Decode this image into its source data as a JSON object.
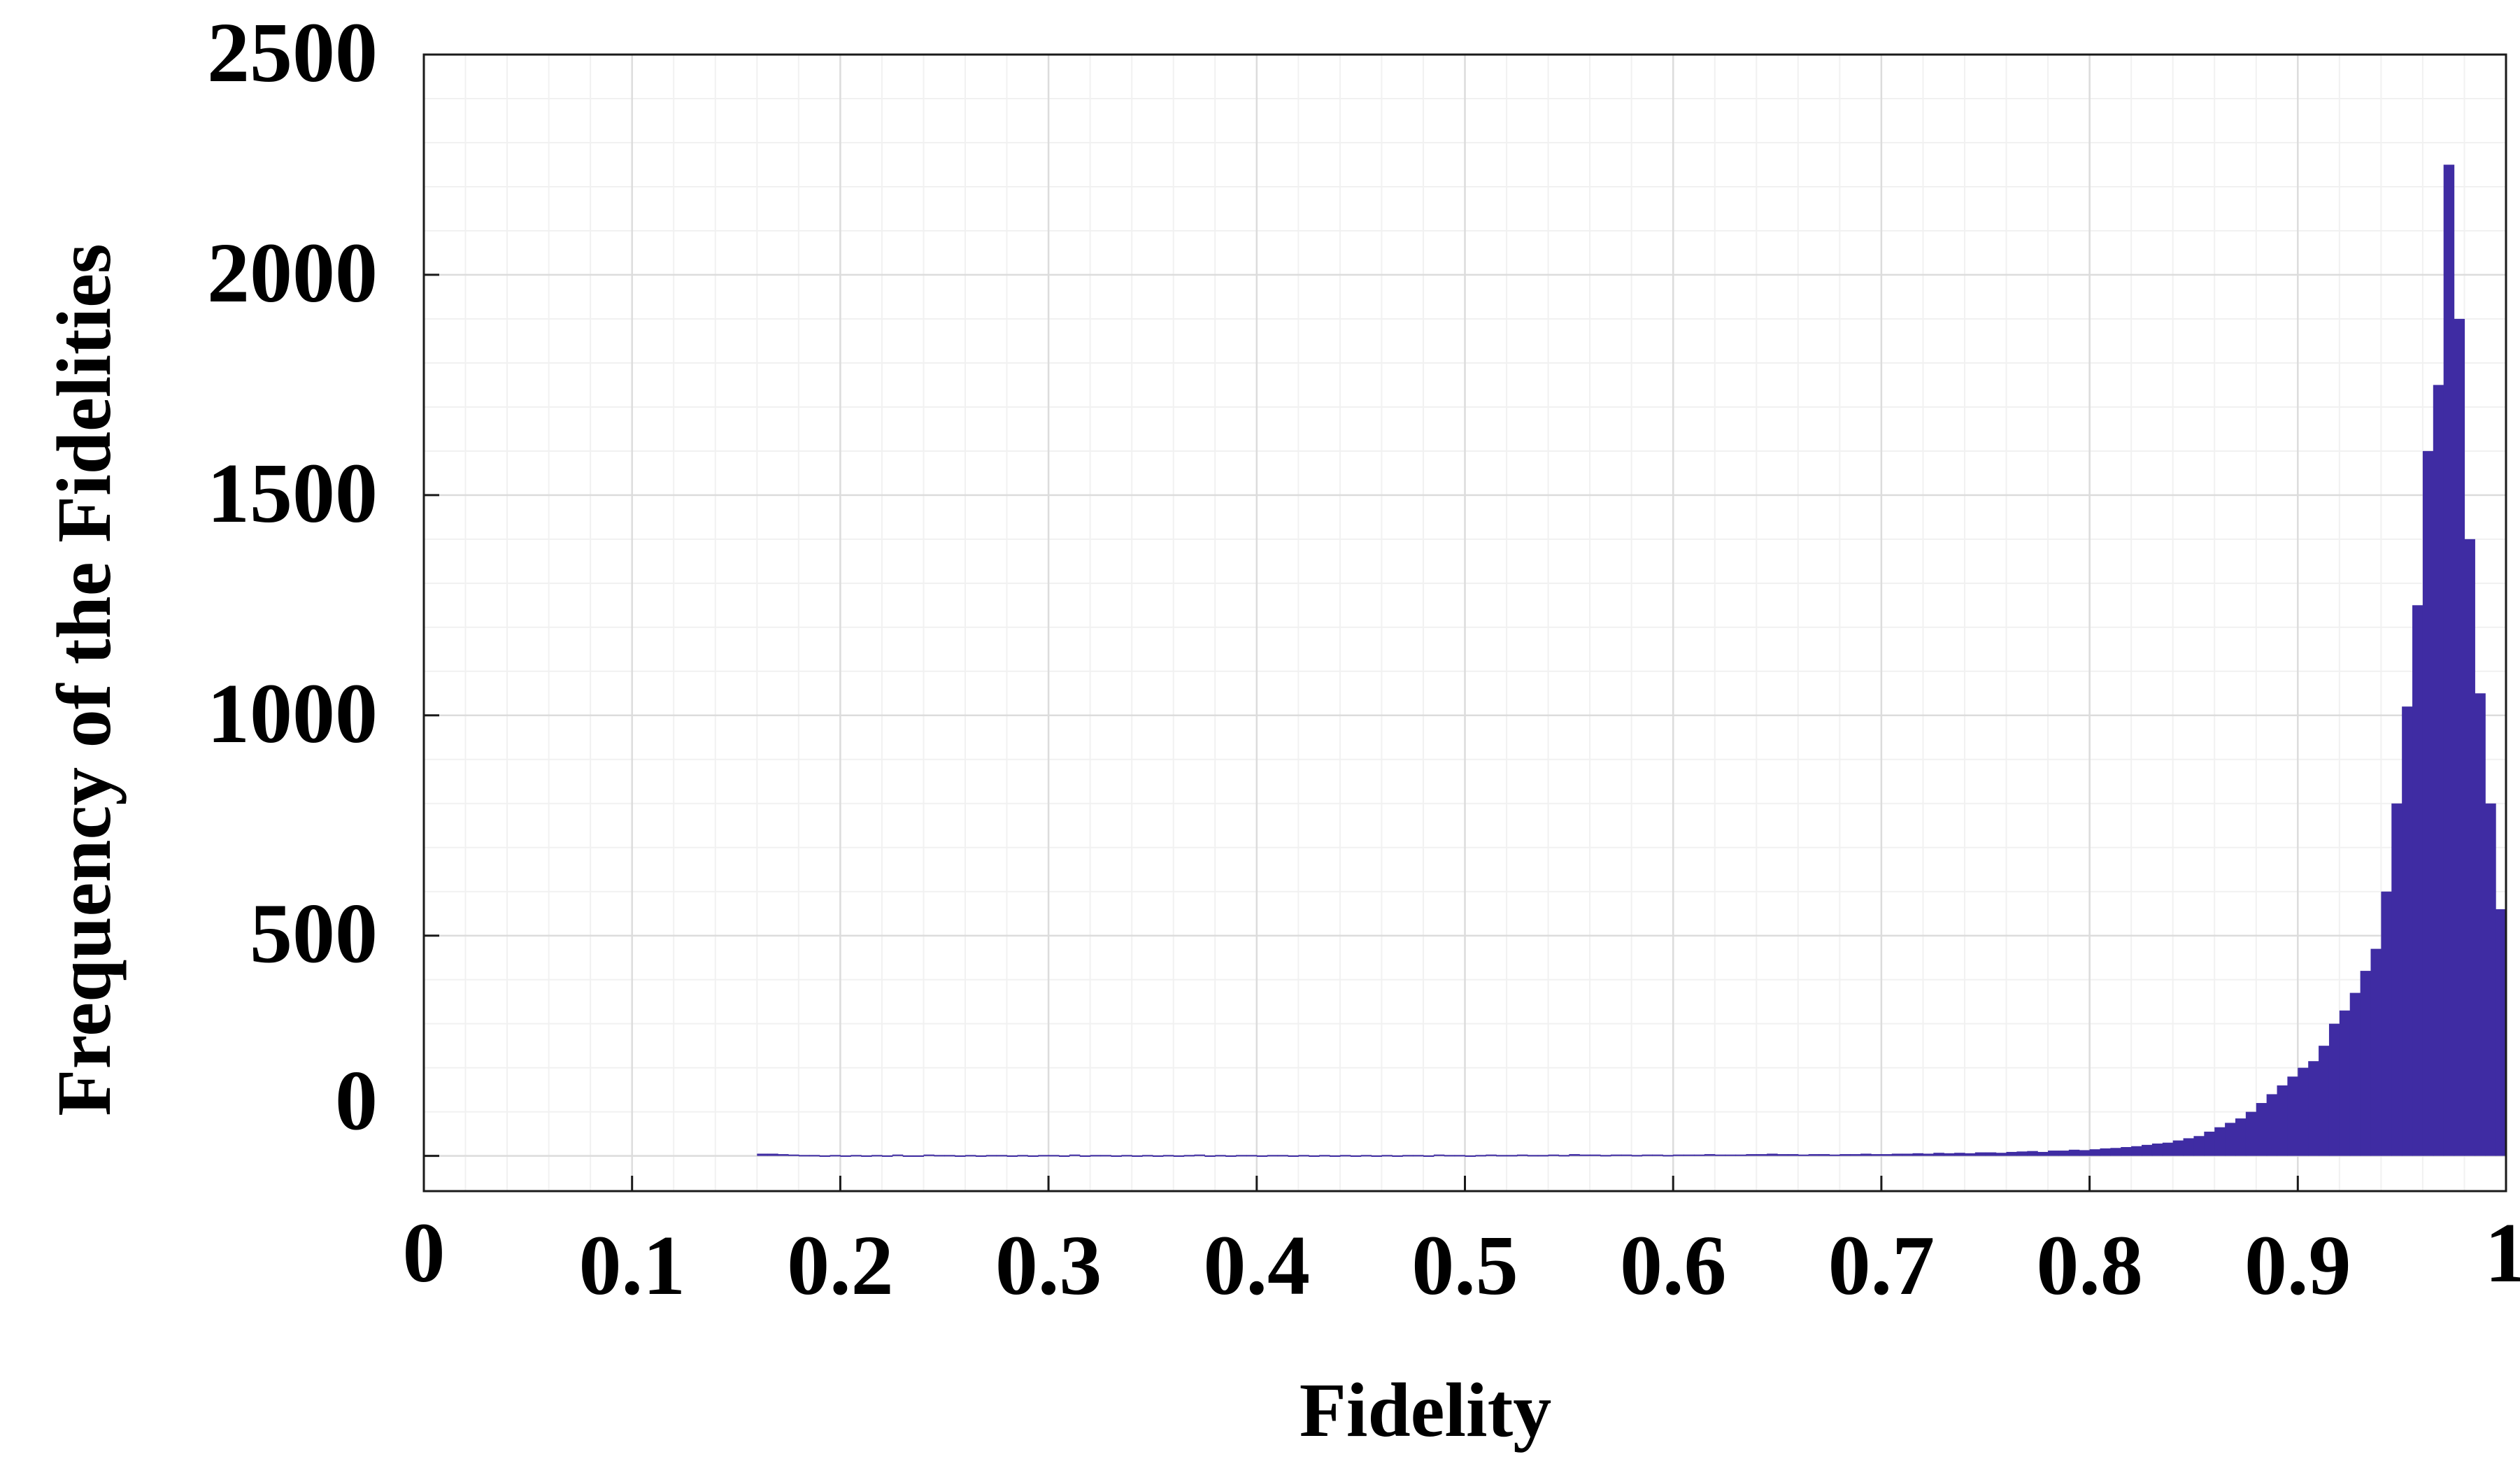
{
  "chart_data": {
    "type": "bar",
    "xlabel": "Fidelity",
    "ylabel": "Frequency of the Fidelities",
    "xlim": [
      0,
      1
    ],
    "ylim": [
      -80,
      2500
    ],
    "xticks": [
      0,
      0.1,
      0.2,
      0.3,
      0.4,
      0.5,
      0.6,
      0.7,
      0.8,
      0.9,
      1
    ],
    "xtick_labels": [
      "0",
      "0.1",
      "0.2",
      "0.3",
      "0.4",
      "0.5",
      "0.6",
      "0.7",
      "0.8",
      "0.9",
      "1"
    ],
    "yticks": [
      0,
      500,
      1000,
      1500,
      2000,
      2500
    ],
    "ytick_labels": [
      "0",
      "500",
      "1000",
      "1500",
      "2000",
      "2500"
    ],
    "grid": true,
    "minor_grid": true,
    "bar_color": "#3f2ca3",
    "bin_width": 0.005,
    "bins": [
      [
        0.16,
        5
      ],
      [
        0.165,
        5
      ],
      [
        0.17,
        4
      ],
      [
        0.175,
        3
      ],
      [
        0.18,
        2
      ],
      [
        0.185,
        2
      ],
      [
        0.19,
        1
      ],
      [
        0.195,
        2
      ],
      [
        0.2,
        1
      ],
      [
        0.205,
        2
      ],
      [
        0.21,
        1
      ],
      [
        0.215,
        2
      ],
      [
        0.22,
        1
      ],
      [
        0.225,
        3
      ],
      [
        0.23,
        1
      ],
      [
        0.235,
        1
      ],
      [
        0.24,
        3
      ],
      [
        0.245,
        2
      ],
      [
        0.25,
        2
      ],
      [
        0.255,
        1
      ],
      [
        0.26,
        2
      ],
      [
        0.265,
        1
      ],
      [
        0.27,
        2
      ],
      [
        0.275,
        2
      ],
      [
        0.28,
        1
      ],
      [
        0.285,
        2
      ],
      [
        0.29,
        1
      ],
      [
        0.295,
        2
      ],
      [
        0.3,
        2
      ],
      [
        0.305,
        1
      ],
      [
        0.31,
        3
      ],
      [
        0.315,
        1
      ],
      [
        0.32,
        2
      ],
      [
        0.325,
        2
      ],
      [
        0.33,
        1
      ],
      [
        0.335,
        2
      ],
      [
        0.34,
        1
      ],
      [
        0.345,
        2
      ],
      [
        0.35,
        1
      ],
      [
        0.355,
        2
      ],
      [
        0.36,
        1
      ],
      [
        0.365,
        2
      ],
      [
        0.37,
        3
      ],
      [
        0.375,
        1
      ],
      [
        0.38,
        2
      ],
      [
        0.385,
        1
      ],
      [
        0.39,
        2
      ],
      [
        0.395,
        2
      ],
      [
        0.4,
        1
      ],
      [
        0.405,
        2
      ],
      [
        0.41,
        2
      ],
      [
        0.415,
        1
      ],
      [
        0.42,
        2
      ],
      [
        0.425,
        1
      ],
      [
        0.43,
        2
      ],
      [
        0.435,
        1
      ],
      [
        0.44,
        2
      ],
      [
        0.445,
        1
      ],
      [
        0.45,
        2
      ],
      [
        0.455,
        1
      ],
      [
        0.46,
        2
      ],
      [
        0.465,
        1
      ],
      [
        0.47,
        2
      ],
      [
        0.475,
        2
      ],
      [
        0.48,
        1
      ],
      [
        0.485,
        3
      ],
      [
        0.49,
        2
      ],
      [
        0.495,
        2
      ],
      [
        0.5,
        1
      ],
      [
        0.505,
        2
      ],
      [
        0.51,
        3
      ],
      [
        0.515,
        2
      ],
      [
        0.52,
        2
      ],
      [
        0.525,
        3
      ],
      [
        0.53,
        2
      ],
      [
        0.535,
        2
      ],
      [
        0.54,
        3
      ],
      [
        0.545,
        2
      ],
      [
        0.55,
        4
      ],
      [
        0.555,
        3
      ],
      [
        0.56,
        3
      ],
      [
        0.565,
        2
      ],
      [
        0.57,
        3
      ],
      [
        0.575,
        3
      ],
      [
        0.58,
        2
      ],
      [
        0.585,
        3
      ],
      [
        0.59,
        3
      ],
      [
        0.595,
        2
      ],
      [
        0.6,
        3
      ],
      [
        0.605,
        3
      ],
      [
        0.61,
        3
      ],
      [
        0.615,
        4
      ],
      [
        0.62,
        3
      ],
      [
        0.625,
        3
      ],
      [
        0.63,
        3
      ],
      [
        0.635,
        4
      ],
      [
        0.64,
        4
      ],
      [
        0.645,
        5
      ],
      [
        0.65,
        4
      ],
      [
        0.655,
        4
      ],
      [
        0.66,
        3
      ],
      [
        0.665,
        4
      ],
      [
        0.67,
        4
      ],
      [
        0.675,
        3
      ],
      [
        0.68,
        4
      ],
      [
        0.685,
        4
      ],
      [
        0.69,
        5
      ],
      [
        0.695,
        4
      ],
      [
        0.7,
        4
      ],
      [
        0.705,
        5
      ],
      [
        0.71,
        5
      ],
      [
        0.715,
        6
      ],
      [
        0.72,
        5
      ],
      [
        0.725,
        7
      ],
      [
        0.73,
        6
      ],
      [
        0.735,
        7
      ],
      [
        0.74,
        6
      ],
      [
        0.745,
        8
      ],
      [
        0.75,
        8
      ],
      [
        0.755,
        7
      ],
      [
        0.76,
        9
      ],
      [
        0.765,
        10
      ],
      [
        0.77,
        11
      ],
      [
        0.775,
        9
      ],
      [
        0.78,
        12
      ],
      [
        0.785,
        12
      ],
      [
        0.79,
        14
      ],
      [
        0.795,
        13
      ],
      [
        0.8,
        15
      ],
      [
        0.805,
        17
      ],
      [
        0.81,
        18
      ],
      [
        0.815,
        20
      ],
      [
        0.82,
        22
      ],
      [
        0.825,
        25
      ],
      [
        0.83,
        28
      ],
      [
        0.835,
        30
      ],
      [
        0.84,
        35
      ],
      [
        0.845,
        40
      ],
      [
        0.85,
        45
      ],
      [
        0.855,
        55
      ],
      [
        0.86,
        65
      ],
      [
        0.865,
        75
      ],
      [
        0.87,
        85
      ],
      [
        0.875,
        100
      ],
      [
        0.88,
        120
      ],
      [
        0.885,
        140
      ],
      [
        0.89,
        160
      ],
      [
        0.895,
        180
      ],
      [
        0.9,
        200
      ],
      [
        0.905,
        215
      ],
      [
        0.91,
        250
      ],
      [
        0.915,
        300
      ],
      [
        0.92,
        330
      ],
      [
        0.925,
        370
      ],
      [
        0.93,
        420
      ],
      [
        0.935,
        470
      ],
      [
        0.94,
        600
      ],
      [
        0.945,
        800
      ],
      [
        0.95,
        1020
      ],
      [
        0.955,
        1250
      ],
      [
        0.96,
        1600
      ],
      [
        0.965,
        1750
      ],
      [
        0.97,
        2250
      ],
      [
        0.975,
        1900
      ],
      [
        0.98,
        1400
      ],
      [
        0.985,
        1050
      ],
      [
        0.99,
        800
      ],
      [
        0.995,
        560
      ]
    ]
  }
}
